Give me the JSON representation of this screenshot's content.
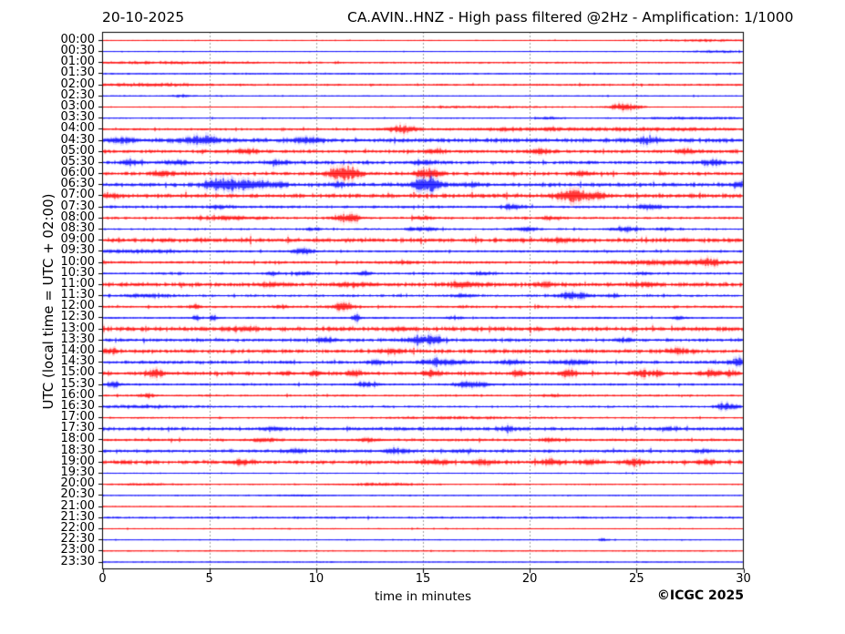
{
  "chart_data": {
    "type": "line",
    "subtype": "helicorder-daily-seismogram",
    "date": "20-10-2025",
    "title": "CA.AVIN..HNZ - High pass filtered @2Hz - Amplification: 1/1000",
    "xlabel": "time in minutes",
    "ylabel": "UTC (local time = UTC + 02:00)",
    "credit": "©ICGC 2025",
    "xlim": [
      0,
      30
    ],
    "x_ticks": [
      0,
      5,
      10,
      15,
      20,
      25,
      30
    ],
    "grid": {
      "vertical_dotted_at_minutes": [
        5,
        10,
        15,
        20,
        25
      ]
    },
    "palette": {
      "red": "#ff0000",
      "blue": "#0000ff",
      "axis": "#000000",
      "grid": "#444444"
    },
    "events_schema": "[minute, amplitude_px, half_width_min]",
    "rows": [
      {
        "label": "00:00",
        "color": "red",
        "noise": 0.4,
        "events": [
          [
            28.2,
            0.8,
            2
          ]
        ]
      },
      {
        "label": "00:30",
        "color": "blue",
        "noise": 0.4,
        "events": [
          [
            29,
            0.9,
            1.2
          ]
        ]
      },
      {
        "label": "01:00",
        "color": "red",
        "noise": 0.7,
        "events": [
          [
            3,
            0.7,
            3
          ]
        ]
      },
      {
        "label": "01:30",
        "color": "blue",
        "noise": 0.6,
        "events": []
      },
      {
        "label": "02:00",
        "color": "red",
        "noise": 0.8,
        "events": [
          [
            2.2,
            1.1,
            1.5
          ]
        ]
      },
      {
        "label": "02:30",
        "color": "blue",
        "noise": 0.5,
        "events": [
          [
            3.7,
            1.2,
            0.25
          ]
        ]
      },
      {
        "label": "03:00",
        "color": "red",
        "noise": 0.5,
        "events": [
          [
            24.5,
            3.2,
            0.5
          ],
          [
            17.5,
            0.7,
            2.5
          ]
        ]
      },
      {
        "label": "03:30",
        "color": "blue",
        "noise": 0.5,
        "events": [
          [
            21,
            1,
            0.4
          ],
          [
            27.8,
            0.9,
            1.8
          ]
        ]
      },
      {
        "label": "04:00",
        "color": "red",
        "noise": 0.9,
        "events": [
          [
            14,
            3,
            0.45
          ],
          [
            19.5,
            0.9,
            2.5
          ],
          [
            26,
            1,
            3
          ]
        ]
      },
      {
        "label": "04:30",
        "color": "blue",
        "noise": 1.8,
        "events": [
          [
            0.9,
            2.2,
            0.4
          ],
          [
            4.7,
            3.2,
            0.6
          ],
          [
            9.6,
            2.2,
            0.5
          ],
          [
            25.5,
            2.2,
            0.5
          ]
        ]
      },
      {
        "label": "05:00",
        "color": "red",
        "noise": 1.4,
        "events": [
          [
            6.7,
            2,
            0.4
          ],
          [
            15.5,
            1.8,
            0.35
          ],
          [
            20.5,
            1.8,
            0.35
          ],
          [
            27.5,
            2,
            0.4
          ]
        ]
      },
      {
        "label": "05:30",
        "color": "blue",
        "noise": 1.4,
        "events": [
          [
            1.3,
            2,
            0.35
          ],
          [
            3.5,
            1.8,
            0.35
          ],
          [
            8.2,
            1.8,
            0.35
          ],
          [
            15,
            1.6,
            0.35
          ],
          [
            28.6,
            2,
            0.4
          ]
        ]
      },
      {
        "label": "06:00",
        "color": "red",
        "noise": 1.5,
        "events": [
          [
            2.9,
            1.8,
            0.35
          ],
          [
            11.3,
            6.5,
            0.5
          ],
          [
            15.2,
            3.8,
            0.4
          ],
          [
            22.5,
            1.6,
            0.35
          ]
        ]
      },
      {
        "label": "06:30",
        "color": "blue",
        "noise": 1.7,
        "events": [
          [
            5.5,
            5.2,
            0.5
          ],
          [
            6.6,
            3,
            0.4
          ],
          [
            7.4,
            2.4,
            0.35
          ],
          [
            8.3,
            2.2,
            0.3
          ],
          [
            11.1,
            1.8,
            0.3
          ],
          [
            15.25,
            6,
            0.45
          ],
          [
            17.4,
            1.6,
            0.3
          ],
          [
            29.9,
            2.2,
            0.3
          ]
        ]
      },
      {
        "label": "07:00",
        "color": "red",
        "noise": 1.7,
        "events": [
          [
            0.3,
            1.8,
            0.3
          ],
          [
            22,
            5,
            0.55
          ],
          [
            23.1,
            1.8,
            0.35
          ]
        ]
      },
      {
        "label": "07:30",
        "color": "blue",
        "noise": 1.1,
        "events": [
          [
            5.6,
            1.5,
            0.35
          ],
          [
            19.2,
            2,
            0.35
          ],
          [
            25.7,
            2.4,
            0.4
          ]
        ]
      },
      {
        "label": "08:00",
        "color": "red",
        "noise": 1.0,
        "events": [
          [
            5.8,
            1.5,
            1
          ],
          [
            11.3,
            2.6,
            0.35
          ],
          [
            11.8,
            2.2,
            0.25
          ],
          [
            15,
            1.6,
            0.3
          ],
          [
            21,
            1.4,
            0.3
          ]
        ]
      },
      {
        "label": "08:30",
        "color": "blue",
        "noise": 0.8,
        "events": [
          [
            9.8,
            1.3,
            0.25
          ],
          [
            14.6,
            1.6,
            0.3
          ],
          [
            15.3,
            1.4,
            0.25
          ],
          [
            19.9,
            1.9,
            0.4
          ],
          [
            24.5,
            2.3,
            0.45
          ],
          [
            26.3,
            1.4,
            0.3
          ]
        ]
      },
      {
        "label": "09:00",
        "color": "red",
        "noise": 1.9,
        "events": [
          [
            21.5,
            1.2,
            0.4
          ]
        ]
      },
      {
        "label": "09:30",
        "color": "blue",
        "noise": 0.9,
        "events": [
          [
            1.8,
            1.2,
            1.5
          ],
          [
            9.4,
            2.6,
            0.4
          ]
        ]
      },
      {
        "label": "10:00",
        "color": "red",
        "noise": 1.1,
        "events": [
          [
            14.2,
            1.2,
            0.4
          ],
          [
            26.2,
            1.7,
            1.8
          ],
          [
            28.4,
            2.2,
            0.4
          ]
        ]
      },
      {
        "label": "10:30",
        "color": "blue",
        "noise": 0.9,
        "events": [
          [
            8,
            1.2,
            0.25
          ],
          [
            9.5,
            1.4,
            0.4
          ],
          [
            12.2,
            1.5,
            0.3
          ],
          [
            17.8,
            1.5,
            0.4
          ],
          [
            25.4,
            1.2,
            0.25
          ]
        ]
      },
      {
        "label": "11:00",
        "color": "red",
        "noise": 1.7,
        "events": [
          [
            8,
            1.6,
            0.4
          ],
          [
            11.8,
            1.7,
            0.6
          ],
          [
            17,
            1.7,
            0.6
          ],
          [
            20.7,
            1.7,
            0.35
          ],
          [
            25.4,
            1.7,
            0.4
          ]
        ]
      },
      {
        "label": "11:30",
        "color": "blue",
        "noise": 1.0,
        "events": [
          [
            2.1,
            1.4,
            0.8
          ],
          [
            16.9,
            1.5,
            0.4
          ],
          [
            22.1,
            2.6,
            0.5
          ],
          [
            23.9,
            1.2,
            0.25
          ]
        ]
      },
      {
        "label": "12:00",
        "color": "red",
        "noise": 1.0,
        "events": [
          [
            4.4,
            1.7,
            0.15
          ],
          [
            8.4,
            1.2,
            0.25
          ],
          [
            11.3,
            3.2,
            0.4
          ]
        ]
      },
      {
        "label": "12:30",
        "color": "blue",
        "noise": 0.8,
        "events": [
          [
            4.4,
            2.8,
            0.12
          ],
          [
            5.2,
            2.4,
            0.12
          ],
          [
            11.9,
            3,
            0.15
          ],
          [
            16.5,
            1.2,
            0.25
          ],
          [
            27,
            1.1,
            0.25
          ]
        ]
      },
      {
        "label": "13:00",
        "color": "red",
        "noise": 1.9,
        "events": [
          [
            6.5,
            1.4,
            0.4
          ],
          [
            14,
            1.4,
            0.4
          ]
        ]
      },
      {
        "label": "13:30",
        "color": "blue",
        "noise": 1.4,
        "events": [
          [
            10.4,
            1.7,
            0.35
          ],
          [
            14.8,
            2.8,
            0.4
          ],
          [
            15.5,
            2.4,
            0.35
          ],
          [
            24.5,
            1.5,
            0.3
          ]
        ]
      },
      {
        "label": "14:00",
        "color": "red",
        "noise": 1.7,
        "events": [
          [
            0.4,
            1.9,
            0.25
          ],
          [
            13.5,
            1.7,
            0.4
          ],
          [
            27,
            1.5,
            0.4
          ]
        ]
      },
      {
        "label": "14:30",
        "color": "blue",
        "noise": 1.3,
        "events": [
          [
            12.8,
            1.6,
            0.35
          ],
          [
            15.5,
            2.2,
            0.5
          ],
          [
            16.6,
            1.8,
            0.35
          ],
          [
            19.2,
            1.8,
            0.35
          ],
          [
            22.2,
            2.2,
            0.4
          ],
          [
            29.9,
            3.5,
            0.35
          ]
        ]
      },
      {
        "label": "15:00",
        "color": "red",
        "noise": 1.5,
        "events": [
          [
            2.5,
            2.6,
            0.25
          ],
          [
            8.6,
            2,
            0.18
          ],
          [
            10,
            2,
            0.18
          ],
          [
            11.8,
            2.6,
            0.25
          ],
          [
            15.5,
            2.4,
            0.3
          ],
          [
            19.5,
            2.8,
            0.2
          ],
          [
            21.8,
            2.6,
            0.25
          ],
          [
            25.3,
            3,
            0.25
          ],
          [
            26,
            2.2,
            0.18
          ],
          [
            28.6,
            2.8,
            0.25
          ],
          [
            29.5,
            2.4,
            0.18
          ]
        ]
      },
      {
        "label": "15:30",
        "color": "blue",
        "noise": 0.9,
        "events": [
          [
            0.5,
            2.8,
            0.2
          ],
          [
            12.3,
            2,
            0.4
          ],
          [
            17,
            2.2,
            0.4
          ],
          [
            17.7,
            1.8,
            0.35
          ]
        ]
      },
      {
        "label": "16:00",
        "color": "red",
        "noise": 0.8,
        "events": [
          [
            2.1,
            1.5,
            0.25
          ],
          [
            21,
            0.9,
            0.35
          ]
        ]
      },
      {
        "label": "16:30",
        "color": "blue",
        "noise": 0.8,
        "events": [
          [
            1.5,
            1.1,
            2
          ],
          [
            29.3,
            2.8,
            0.4
          ]
        ]
      },
      {
        "label": "17:00",
        "color": "red",
        "noise": 0.7,
        "events": [
          [
            17,
            0.7,
            2.5
          ]
        ]
      },
      {
        "label": "17:30",
        "color": "blue",
        "noise": 1.4,
        "events": [
          [
            8,
            1.5,
            0.35
          ],
          [
            19,
            1.4,
            0.35
          ],
          [
            26.6,
            1.3,
            0.35
          ]
        ]
      },
      {
        "label": "18:00",
        "color": "red",
        "noise": 1.1,
        "events": [
          [
            7.5,
            1.3,
            0.4
          ],
          [
            12.5,
            1.3,
            0.4
          ],
          [
            21,
            1.2,
            0.35
          ]
        ]
      },
      {
        "label": "18:30",
        "color": "blue",
        "noise": 1.3,
        "events": [
          [
            9,
            1.5,
            0.4
          ],
          [
            13.8,
            1.7,
            0.4
          ],
          [
            16.9,
            1.3,
            0.35
          ],
          [
            28,
            1.4,
            0.35
          ]
        ]
      },
      {
        "label": "19:00",
        "color": "red",
        "noise": 1.6,
        "events": [
          [
            6.5,
            1.7,
            0.4
          ],
          [
            15.5,
            1.9,
            0.5
          ],
          [
            17.8,
            1.9,
            0.4
          ],
          [
            21,
            2.1,
            0.4
          ],
          [
            23,
            1.9,
            0.35
          ],
          [
            25,
            2.1,
            0.35
          ],
          [
            28.5,
            1.7,
            0.35
          ]
        ]
      },
      {
        "label": "19:30",
        "color": "blue",
        "noise": 0.5,
        "events": []
      },
      {
        "label": "20:00",
        "color": "red",
        "noise": 0.5,
        "events": [
          [
            2,
            0.8,
            1
          ],
          [
            13.2,
            1.1,
            1.2
          ],
          [
            19.2,
            0.7,
            0.25
          ]
        ]
      },
      {
        "label": "20:30",
        "color": "blue",
        "noise": 0.45,
        "events": [
          [
            9.2,
            0.6,
            0.8
          ]
        ]
      },
      {
        "label": "21:00",
        "color": "red",
        "noise": 0.45,
        "events": []
      },
      {
        "label": "21:30",
        "color": "blue",
        "noise": 0.85,
        "events": []
      },
      {
        "label": "22:00",
        "color": "red",
        "noise": 0.5,
        "events": []
      },
      {
        "label": "22:30",
        "color": "blue",
        "noise": 0.45,
        "events": [
          [
            23.5,
            1.3,
            0.15
          ]
        ]
      },
      {
        "label": "23:00",
        "color": "red",
        "noise": 0.45,
        "events": []
      },
      {
        "label": "23:30",
        "color": "blue",
        "noise": 0.45,
        "events": []
      }
    ]
  }
}
